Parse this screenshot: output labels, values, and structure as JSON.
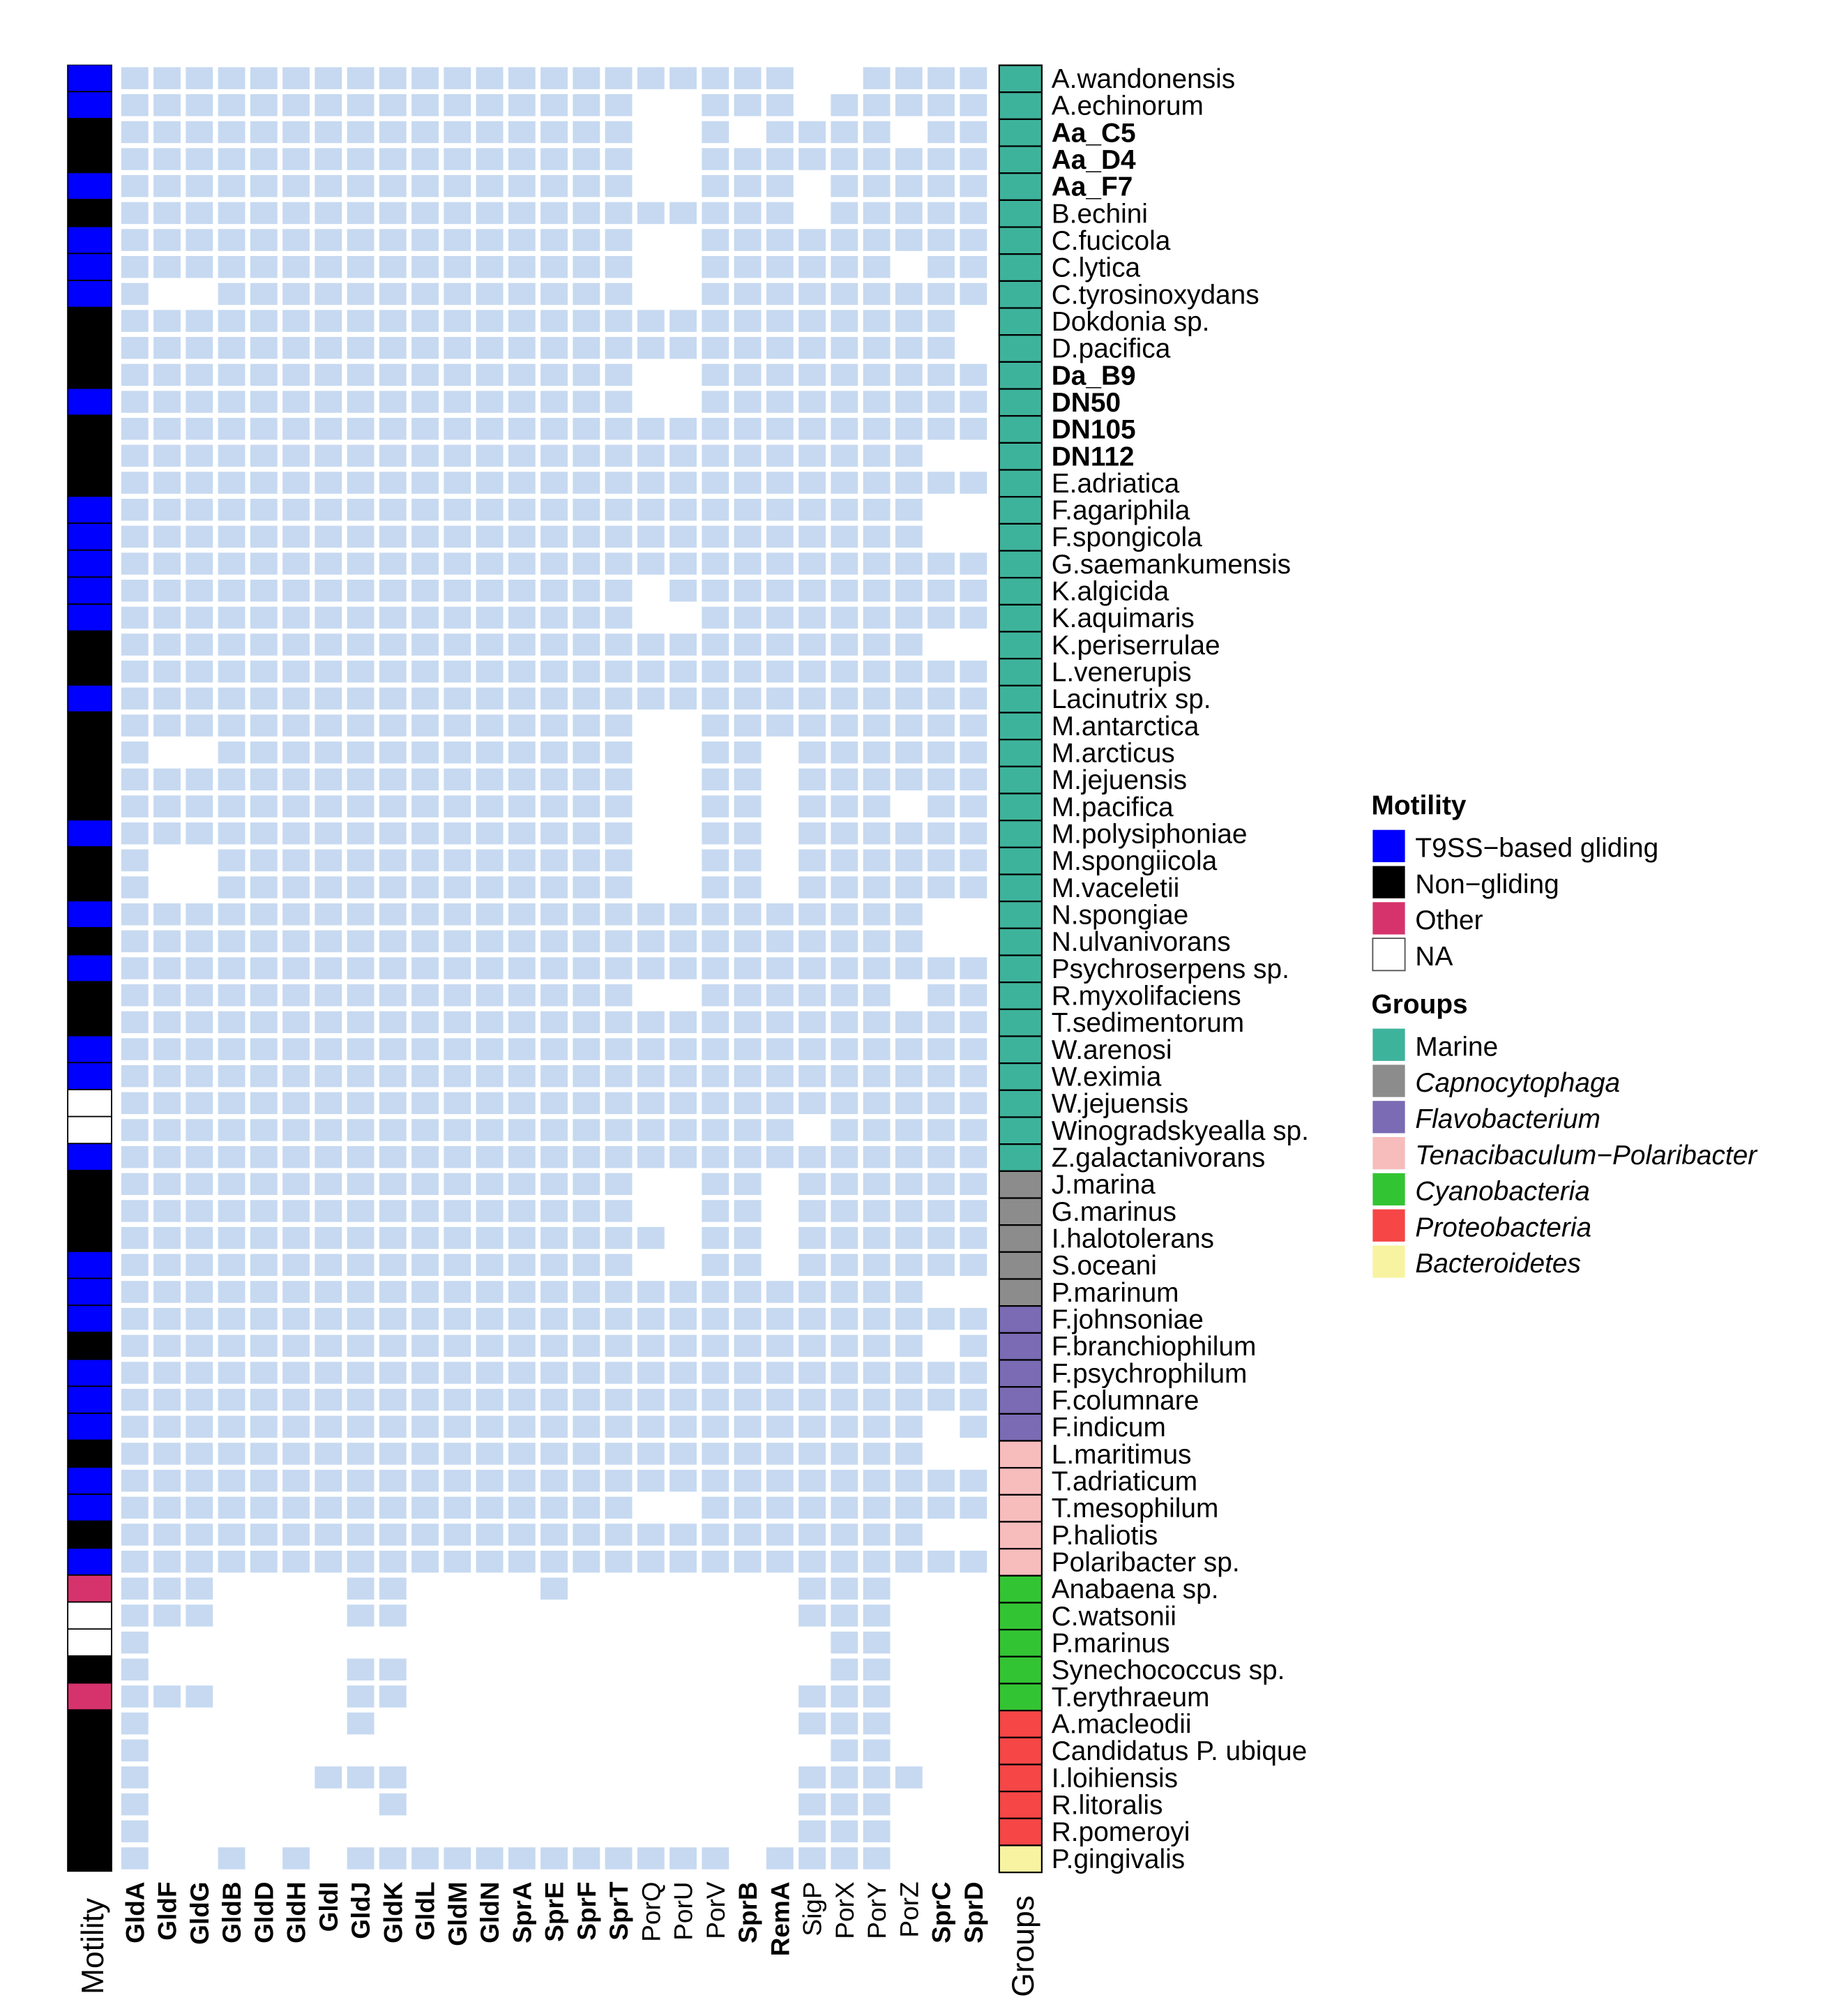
{
  "chart_data": {
    "type": "heatmap",
    "columns": [
      {
        "label": "GldA",
        "bold": true
      },
      {
        "label": "GldF",
        "bold": true
      },
      {
        "label": "GldG",
        "bold": true
      },
      {
        "label": "GldB",
        "bold": true
      },
      {
        "label": "GldD",
        "bold": true
      },
      {
        "label": "GldH",
        "bold": true
      },
      {
        "label": "GldI",
        "bold": true
      },
      {
        "label": "GldJ",
        "bold": true
      },
      {
        "label": "GldK",
        "bold": true
      },
      {
        "label": "GldL",
        "bold": true
      },
      {
        "label": "GldM",
        "bold": true
      },
      {
        "label": "GldN",
        "bold": true
      },
      {
        "label": "SprA",
        "bold": true
      },
      {
        "label": "SprE",
        "bold": true
      },
      {
        "label": "SprF",
        "bold": true
      },
      {
        "label": "SprT",
        "bold": true
      },
      {
        "label": "PorQ",
        "bold": false
      },
      {
        "label": "PorU",
        "bold": false
      },
      {
        "label": "PorV",
        "bold": false
      },
      {
        "label": "SprB",
        "bold": true
      },
      {
        "label": "RemA",
        "bold": true
      },
      {
        "label": "SigP",
        "bold": false
      },
      {
        "label": "PorX",
        "bold": false
      },
      {
        "label": "PorY",
        "bold": false
      },
      {
        "label": "PorZ",
        "bold": false
      },
      {
        "label": "SprC",
        "bold": true
      },
      {
        "label": "SprD",
        "bold": true
      }
    ],
    "rows": [
      {
        "name": "A.wandonensis",
        "bold": false,
        "motility": "gliding",
        "group": "Marine",
        "genes": "111111111111111111111001111"
      },
      {
        "name": "A.echinorum",
        "bold": false,
        "motility": "gliding",
        "group": "Marine",
        "genes": "111111111111111100111011111"
      },
      {
        "name": "Aa_C5",
        "bold": true,
        "motility": "non",
        "group": "Marine",
        "genes": "111111111111111100101111011"
      },
      {
        "name": "Aa_D4",
        "bold": true,
        "motility": "non",
        "group": "Marine",
        "genes": "111111111111111100111111111"
      },
      {
        "name": "Aa_F7",
        "bold": true,
        "motility": "gliding",
        "group": "Marine",
        "genes": "111111111111111100111011111"
      },
      {
        "name": "B.echini",
        "bold": false,
        "motility": "non",
        "group": "Marine",
        "genes": "111111111111111111111011111"
      },
      {
        "name": "C.fucicola",
        "bold": false,
        "motility": "gliding",
        "group": "Marine",
        "genes": "111111111111111100111111111"
      },
      {
        "name": "C.lytica",
        "bold": false,
        "motility": "gliding",
        "group": "Marine",
        "genes": "111111111111111100111111011"
      },
      {
        "name": "C.tyrosinoxydans",
        "bold": false,
        "motility": "gliding",
        "group": "Marine",
        "genes": "100111111111111100111111111"
      },
      {
        "name": "Dokdonia sp.",
        "bold": false,
        "motility": "non",
        "group": "Marine",
        "genes": "111111111111111111111111110"
      },
      {
        "name": "D.pacifica",
        "bold": false,
        "motility": "non",
        "group": "Marine",
        "genes": "111111111111111111111111110"
      },
      {
        "name": "Da_B9",
        "bold": true,
        "motility": "non",
        "group": "Marine",
        "genes": "111111111111111100111111111"
      },
      {
        "name": "DN50",
        "bold": true,
        "motility": "gliding",
        "group": "Marine",
        "genes": "111111111111111100111111111"
      },
      {
        "name": "DN105",
        "bold": true,
        "motility": "non",
        "group": "Marine",
        "genes": "111111111111111111111111111"
      },
      {
        "name": "DN112",
        "bold": true,
        "motility": "non",
        "group": "Marine",
        "genes": "111111111111111111111111100"
      },
      {
        "name": "E.adriatica",
        "bold": false,
        "motility": "non",
        "group": "Marine",
        "genes": "111111111111111111111111111"
      },
      {
        "name": "F.agariphila",
        "bold": false,
        "motility": "gliding",
        "group": "Marine",
        "genes": "111111111111111111111111100"
      },
      {
        "name": "F.spongicola",
        "bold": false,
        "motility": "gliding",
        "group": "Marine",
        "genes": "111111111111111111111111100"
      },
      {
        "name": "G.saemankumensis",
        "bold": false,
        "motility": "gliding",
        "group": "Marine",
        "genes": "111111111111111111111111111"
      },
      {
        "name": "K.algicida",
        "bold": false,
        "motility": "gliding",
        "group": "Marine",
        "genes": "111111111111111101111111111"
      },
      {
        "name": "K.aquimaris",
        "bold": false,
        "motility": "gliding",
        "group": "Marine",
        "genes": "111111111111111100111111111"
      },
      {
        "name": "K.periserrulae",
        "bold": false,
        "motility": "non",
        "group": "Marine",
        "genes": "111111111111111111111111100"
      },
      {
        "name": "L.venerupis",
        "bold": false,
        "motility": "non",
        "group": "Marine",
        "genes": "111111111111111111111111111"
      },
      {
        "name": "Lacinutrix sp.",
        "bold": false,
        "motility": "gliding",
        "group": "Marine",
        "genes": "111111111111111111111111111"
      },
      {
        "name": "M.antarctica",
        "bold": false,
        "motility": "non",
        "group": "Marine",
        "genes": "111111111111111100111111111"
      },
      {
        "name": "M.arcticus",
        "bold": false,
        "motility": "non",
        "group": "Marine",
        "genes": "100111111111111100110111111"
      },
      {
        "name": "M.jejuensis",
        "bold": false,
        "motility": "non",
        "group": "Marine",
        "genes": "111111111111111100110111111"
      },
      {
        "name": "M.pacifica",
        "bold": false,
        "motility": "non",
        "group": "Marine",
        "genes": "111111111111111100110111011"
      },
      {
        "name": "M.polysiphoniae",
        "bold": false,
        "motility": "gliding",
        "group": "Marine",
        "genes": "111111111111111100110111111"
      },
      {
        "name": "M.spongiicola",
        "bold": false,
        "motility": "non",
        "group": "Marine",
        "genes": "100111111111111100110111111"
      },
      {
        "name": "M.vaceletii",
        "bold": false,
        "motility": "non",
        "group": "Marine",
        "genes": "100111111111111100110111111"
      },
      {
        "name": "N.spongiae",
        "bold": false,
        "motility": "gliding",
        "group": "Marine",
        "genes": "111111111111111111111111100"
      },
      {
        "name": "N.ulvanivorans",
        "bold": false,
        "motility": "non",
        "group": "Marine",
        "genes": "111111111111111111111111100"
      },
      {
        "name": "Psychroserpens sp.",
        "bold": false,
        "motility": "gliding",
        "group": "Marine",
        "genes": "111111111111111111111111111"
      },
      {
        "name": "R.myxolifaciens",
        "bold": false,
        "motility": "non",
        "group": "Marine",
        "genes": "111111111111111100111111011"
      },
      {
        "name": "T.sedimentorum",
        "bold": false,
        "motility": "non",
        "group": "Marine",
        "genes": "111111111111111111111111111"
      },
      {
        "name": "W.arenosi",
        "bold": false,
        "motility": "gliding",
        "group": "Marine",
        "genes": "111111111111111111111111111"
      },
      {
        "name": "W.eximia",
        "bold": false,
        "motility": "gliding",
        "group": "Marine",
        "genes": "111111111111111111111111111"
      },
      {
        "name": "W.jejuensis",
        "bold": false,
        "motility": "na",
        "group": "Marine",
        "genes": "111111111111111111111111111"
      },
      {
        "name": "Winogradskyealla sp.",
        "bold": false,
        "motility": "na",
        "group": "Marine",
        "genes": "111111111111111111111011111"
      },
      {
        "name": "Z.galactanivorans",
        "bold": false,
        "motility": "gliding",
        "group": "Marine",
        "genes": "111111111111111111111111111"
      },
      {
        "name": "J.marina",
        "bold": false,
        "motility": "non",
        "group": "Capnocytophaga",
        "genes": "111111111111111100110111111"
      },
      {
        "name": "G.marinus",
        "bold": false,
        "motility": "non",
        "group": "Capnocytophaga",
        "genes": "111111111111111100110111111"
      },
      {
        "name": "I.halotolerans",
        "bold": false,
        "motility": "non",
        "group": "Capnocytophaga",
        "genes": "111111111111111110110111111"
      },
      {
        "name": "S.oceani",
        "bold": false,
        "motility": "gliding",
        "group": "Capnocytophaga",
        "genes": "111111111111111100110111111"
      },
      {
        "name": "P.marinum",
        "bold": false,
        "motility": "gliding",
        "group": "Capnocytophaga",
        "genes": "111111111111111111111111100"
      },
      {
        "name": "F.johnsoniae",
        "bold": false,
        "motility": "gliding",
        "group": "Flavobacterium",
        "genes": "111111111111111111111111111"
      },
      {
        "name": "F.branchiophilum",
        "bold": false,
        "motility": "non",
        "group": "Flavobacterium",
        "genes": "111111111111111111111111101"
      },
      {
        "name": "F.psychrophilum",
        "bold": false,
        "motility": "gliding",
        "group": "Flavobacterium",
        "genes": "111111111111111111111111111"
      },
      {
        "name": "F.columnare",
        "bold": false,
        "motility": "gliding",
        "group": "Flavobacterium",
        "genes": "111111111111111111111111111"
      },
      {
        "name": "F.indicum",
        "bold": false,
        "motility": "gliding",
        "group": "Flavobacterium",
        "genes": "111111111111111111111111101"
      },
      {
        "name": "L.maritimus",
        "bold": false,
        "motility": "non",
        "group": "Tenacibaculum-Polaribacter",
        "genes": "111111111111111111111111100"
      },
      {
        "name": "T.adriaticum",
        "bold": false,
        "motility": "gliding",
        "group": "Tenacibaculum-Polaribacter",
        "genes": "111111111111111111111111111"
      },
      {
        "name": "T.mesophilum",
        "bold": false,
        "motility": "gliding",
        "group": "Tenacibaculum-Polaribacter",
        "genes": "111111111111111100111111111"
      },
      {
        "name": "P.haliotis",
        "bold": false,
        "motility": "non",
        "group": "Tenacibaculum-Polaribacter",
        "genes": "111111111111111111111111100"
      },
      {
        "name": "Polaribacter sp.",
        "bold": false,
        "motility": "gliding",
        "group": "Tenacibaculum-Polaribacter",
        "genes": "111111111111111111111111111"
      },
      {
        "name": "Anabaena sp.",
        "bold": false,
        "motility": "other",
        "group": "Cyanobacteria",
        "genes": "111000011000010000000111000"
      },
      {
        "name": "C.watsonii",
        "bold": false,
        "motility": "na",
        "group": "Cyanobacteria",
        "genes": "111000011000000000000111000"
      },
      {
        "name": "P.marinus",
        "bold": false,
        "motility": "na",
        "group": "Cyanobacteria",
        "genes": "100000000000000000000011000"
      },
      {
        "name": "Synechococcus sp.",
        "bold": false,
        "motility": "non",
        "group": "Cyanobacteria",
        "genes": "100000011000000000000011000"
      },
      {
        "name": "T.erythraeum",
        "bold": false,
        "motility": "other",
        "group": "Cyanobacteria",
        "genes": "111000011000000000000111000"
      },
      {
        "name": "A.macleodii",
        "bold": false,
        "motility": "non",
        "group": "Proteobacteria",
        "genes": "100000010000000000000111000"
      },
      {
        "name": "Candidatus P. ubique",
        "bold": false,
        "motility": "non",
        "group": "Proteobacteria",
        "genes": "100000000000000000000011000"
      },
      {
        "name": "I.loihiensis",
        "bold": false,
        "motility": "non",
        "group": "Proteobacteria",
        "genes": "100000111000000000000111100"
      },
      {
        "name": "R.litoralis",
        "bold": false,
        "motility": "non",
        "group": "Proteobacteria",
        "genes": "100000001000000000000111000"
      },
      {
        "name": "R.pomeroyi",
        "bold": false,
        "motility": "non",
        "group": "Proteobacteria",
        "genes": "100000000000000000000111000"
      },
      {
        "name": "P.gingivalis",
        "bold": false,
        "motility": "non",
        "group": "Bacteroidetes",
        "genes": "100101011111111111101111000"
      }
    ],
    "motility_colors": {
      "gliding": "#0000ff",
      "non": "#000000",
      "other": "#d6336c",
      "na": "#ffffff"
    },
    "group_colors": {
      "Marine": "#3eb39b",
      "Capnocytophaga": "#8c8c8c",
      "Flavobacterium": "#7a6bb4",
      "Tenacibaculum-Polaribacter": "#f7bcbc",
      "Cyanobacteria": "#33c433",
      "Proteobacteria": "#f64646",
      "Bacteroidetes": "#f7f3a0"
    },
    "present_color": "#c6d9f1",
    "absent_color": "#ffffff",
    "motility_axis_label": "Motility",
    "groups_axis_label": "Groups",
    "legend": {
      "motility_title": "Motility",
      "motility_items": [
        {
          "key": "gliding",
          "label": "T9SS−based gliding",
          "italic": false
        },
        {
          "key": "non",
          "label": "Non−gliding",
          "italic": false
        },
        {
          "key": "other",
          "label": "Other",
          "italic": false
        },
        {
          "key": "na",
          "label": "NA",
          "italic": false
        }
      ],
      "groups_title": "Groups",
      "group_items": [
        {
          "key": "Marine",
          "label": "Marine",
          "italic": false
        },
        {
          "key": "Capnocytophaga",
          "label": "Capnocytophaga",
          "italic": true
        },
        {
          "key": "Flavobacterium",
          "label": "Flavobacterium",
          "italic": true
        },
        {
          "key": "Tenacibaculum-Polaribacter",
          "label": "Tenacibaculum−Polaribacter",
          "italic": true
        },
        {
          "key": "Cyanobacteria",
          "label": "Cyanobacteria",
          "italic": true
        },
        {
          "key": "Proteobacteria",
          "label": "Proteobacteria",
          "italic": true
        },
        {
          "key": "Bacteroidetes",
          "label": "Bacteroidetes",
          "italic": true
        }
      ]
    }
  }
}
